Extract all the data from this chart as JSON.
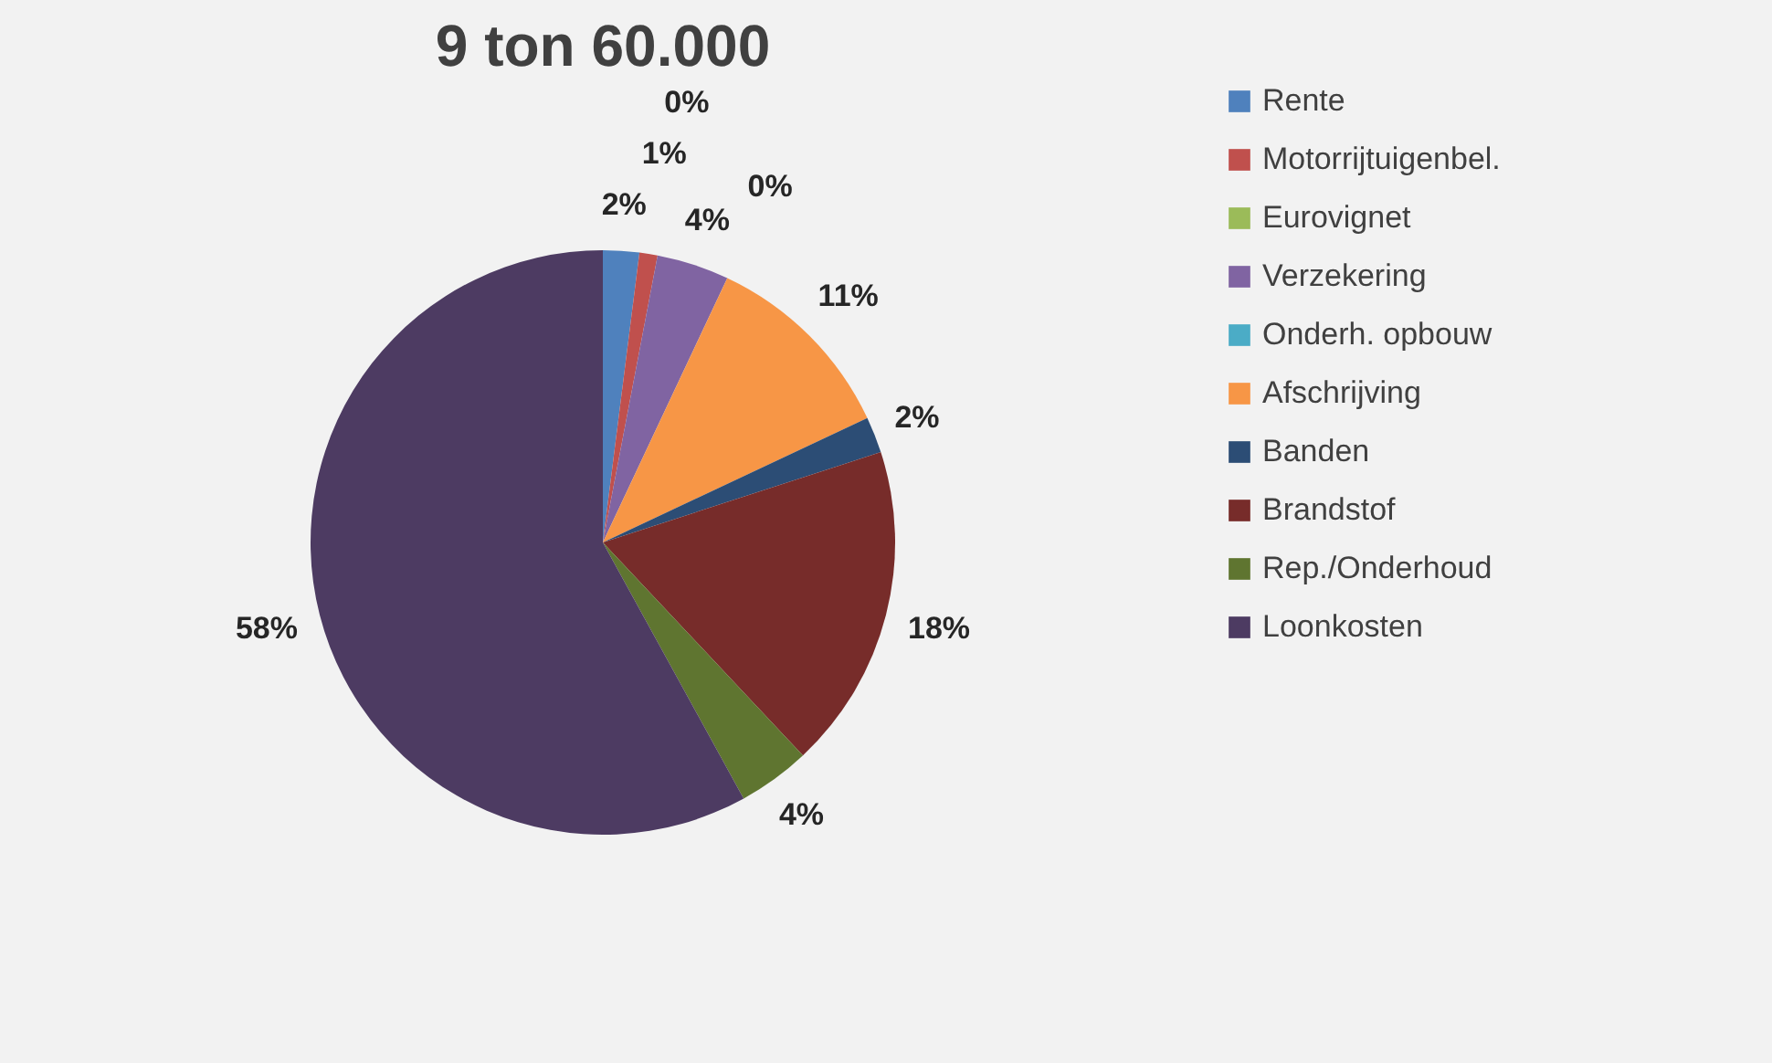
{
  "chart_data": {
    "type": "pie",
    "title": "9 ton 60.000",
    "categories": [
      "Rente",
      "Motorrijtuigenbel.",
      "Eurovignet",
      "Verzekering",
      "Onderh. opbouw",
      "Afschrijving",
      "Banden",
      "Brandstof",
      "Rep./Onderhoud",
      "Loonkosten"
    ],
    "values": [
      2,
      1,
      0,
      4,
      0,
      11,
      2,
      18,
      4,
      58
    ],
    "colors": [
      "#4f81bd",
      "#c0504d",
      "#9bbb59",
      "#8064a2",
      "#4bacc6",
      "#f79646",
      "#2c4d75",
      "#772c2a",
      "#5f7530",
      "#4d3b62"
    ],
    "value_labels": [
      "2%",
      "1%",
      "0%",
      "4%",
      "0%",
      "11%",
      "2%",
      "18%",
      "4%",
      "58%"
    ],
    "legend": "right"
  }
}
